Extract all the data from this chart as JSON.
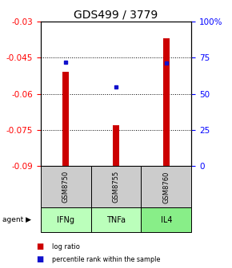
{
  "title": "GDS499 / 3779",
  "samples": [
    "GSM8750",
    "GSM8755",
    "GSM8760"
  ],
  "agents": [
    "IFNg",
    "TNFa",
    "IL4"
  ],
  "log_ratios": [
    -0.051,
    -0.073,
    -0.037
  ],
  "percentile_ranks": [
    72,
    55,
    71
  ],
  "ylim_left": [
    -0.09,
    -0.03
  ],
  "ylim_right": [
    0,
    100
  ],
  "yticks_left": [
    -0.09,
    -0.075,
    -0.06,
    -0.045,
    -0.03
  ],
  "yticks_right": [
    0,
    25,
    50,
    75,
    100
  ],
  "bar_color": "#cc0000",
  "dot_color": "#1111cc",
  "agent_colors": [
    "#bbffbb",
    "#bbffbb",
    "#88ee88"
  ],
  "sample_box_color": "#cccccc",
  "title_fontsize": 10,
  "tick_fontsize": 7.5,
  "legend_fontsize": 6.5,
  "bar_width": 0.12
}
